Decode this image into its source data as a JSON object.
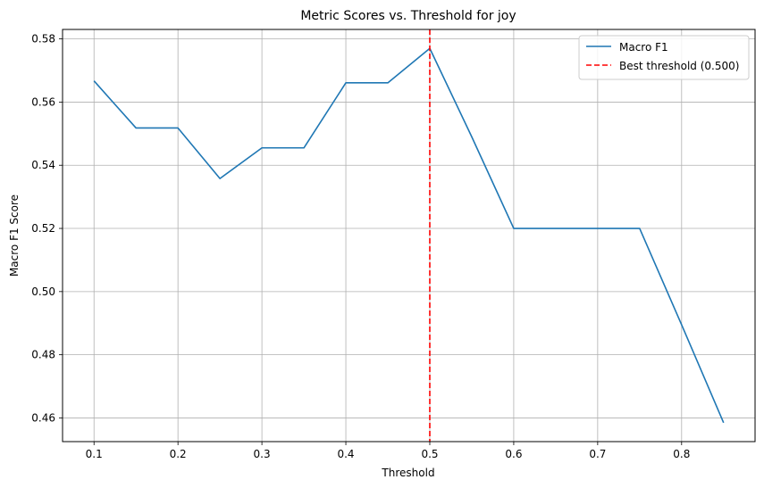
{
  "chart_data": {
    "type": "line",
    "title": "Metric Scores vs. Threshold for joy",
    "xlabel": "Threshold",
    "ylabel": "Macro F1 Score",
    "xlim": [
      0.0625,
      0.8875
    ],
    "ylim": [
      0.4525,
      0.583
    ],
    "xticks": [
      0.1,
      0.2,
      0.3,
      0.4,
      0.5,
      0.6,
      0.7,
      0.8
    ],
    "xtick_labels": [
      "0.1",
      "0.2",
      "0.3",
      "0.4",
      "0.5",
      "0.6",
      "0.7",
      "0.8"
    ],
    "yticks": [
      0.46,
      0.48,
      0.5,
      0.52,
      0.54,
      0.56,
      0.58
    ],
    "ytick_labels": [
      "0.46",
      "0.48",
      "0.50",
      "0.52",
      "0.54",
      "0.56",
      "0.58"
    ],
    "grid": true,
    "legend_position": "top-right",
    "series": [
      {
        "name": "Macro F1",
        "color": "#1f77b4",
        "x": [
          0.1,
          0.15,
          0.2,
          0.25,
          0.3,
          0.35,
          0.4,
          0.45,
          0.5,
          0.55,
          0.6,
          0.65,
          0.7,
          0.75,
          0.8,
          0.85
        ],
        "y": [
          0.5667,
          0.5518,
          0.5518,
          0.5358,
          0.5455,
          0.5455,
          0.5661,
          0.5661,
          0.577,
          0.549,
          0.52,
          0.52,
          0.52,
          0.52,
          0.4895,
          0.4585
        ]
      }
    ],
    "reference_line": {
      "name": "Best threshold (0.500)",
      "x": 0.5,
      "color": "#ff0000",
      "style": "dashed"
    }
  }
}
